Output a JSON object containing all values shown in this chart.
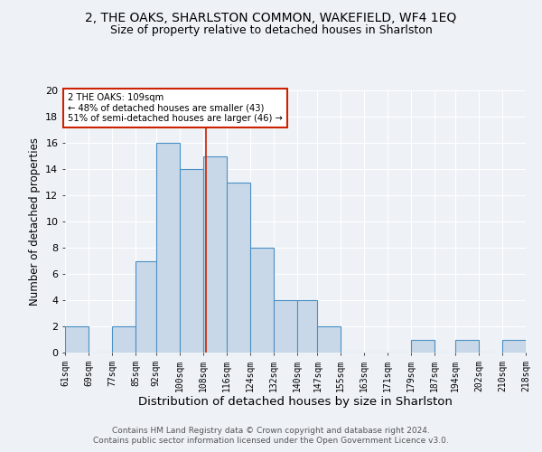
{
  "title": "2, THE OAKS, SHARLSTON COMMON, WAKEFIELD, WF4 1EQ",
  "subtitle": "Size of property relative to detached houses in Sharlston",
  "xlabel": "Distribution of detached houses by size in Sharlston",
  "ylabel": "Number of detached properties",
  "footnote1": "Contains HM Land Registry data © Crown copyright and database right 2024.",
  "footnote2": "Contains public sector information licensed under the Open Government Licence v3.0.",
  "bin_labels": [
    "61sqm",
    "69sqm",
    "77sqm",
    "85sqm",
    "92sqm",
    "100sqm",
    "108sqm",
    "116sqm",
    "124sqm",
    "132sqm",
    "140sqm",
    "147sqm",
    "155sqm",
    "163sqm",
    "171sqm",
    "179sqm",
    "187sqm",
    "194sqm",
    "202sqm",
    "210sqm",
    "218sqm"
  ],
  "bar_values": [
    2,
    0,
    2,
    7,
    16,
    14,
    15,
    13,
    8,
    4,
    4,
    2,
    0,
    0,
    0,
    1,
    0,
    1,
    0,
    1
  ],
  "ylim": [
    0,
    20
  ],
  "yticks": [
    0,
    2,
    4,
    6,
    8,
    10,
    12,
    14,
    16,
    18,
    20
  ],
  "bar_color": "#c8d8e8",
  "bar_edge_color": "#4a90c4",
  "property_line_x": 109,
  "property_line_color": "#cc2200",
  "annotation_text": "2 THE OAKS: 109sqm\n← 48% of detached houses are smaller (43)\n51% of semi-detached houses are larger (46) →",
  "annotation_box_color": "#ffffff",
  "annotation_box_edge": "#cc2200",
  "bg_color": "#eef2f7",
  "grid_color": "#ffffff",
  "title_fontsize": 10,
  "subtitle_fontsize": 9,
  "xlabel_fontsize": 9.5,
  "ylabel_fontsize": 8.5,
  "tick_fontsize": 7,
  "footnote_fontsize": 6.5
}
